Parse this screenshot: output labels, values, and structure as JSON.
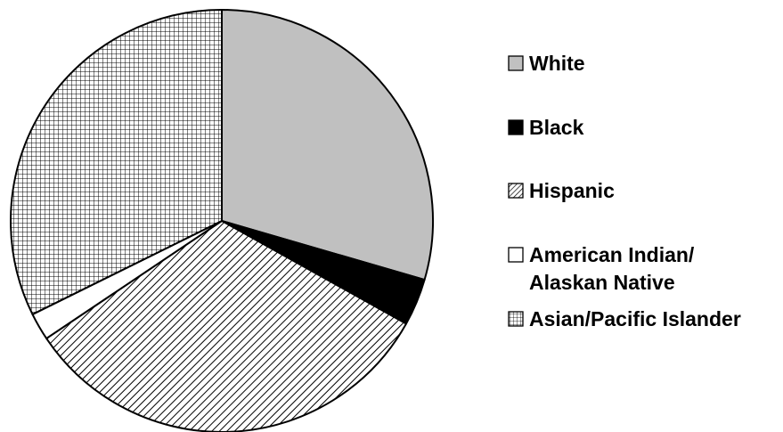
{
  "chart_data": {
    "type": "pie",
    "start_angle_deg": 0,
    "direction": "clockwise",
    "legend_position": "right",
    "slices": [
      {
        "label": [
          "White"
        ],
        "value": 29.5,
        "fill": "#c0c0c0",
        "pattern": "solid",
        "marker": "■"
      },
      {
        "label": [
          "Black"
        ],
        "value": 3.6,
        "fill": "#000000",
        "pattern": "solid",
        "marker": "■"
      },
      {
        "label": [
          "Hispanic"
        ],
        "value": 32.5,
        "fill": "#ffffff",
        "pattern": "diagonal-hatch",
        "marker": "▨"
      },
      {
        "label": [
          "American Indian/",
          "Alaskan Native"
        ],
        "value": 2.1,
        "fill": "#ffffff",
        "pattern": "none",
        "marker": "□"
      },
      {
        "label": [
          "Asian/Pacific Islander"
        ],
        "value": 32.3,
        "fill": "#ffffff",
        "pattern": "grid",
        "marker": "⊞"
      }
    ]
  }
}
